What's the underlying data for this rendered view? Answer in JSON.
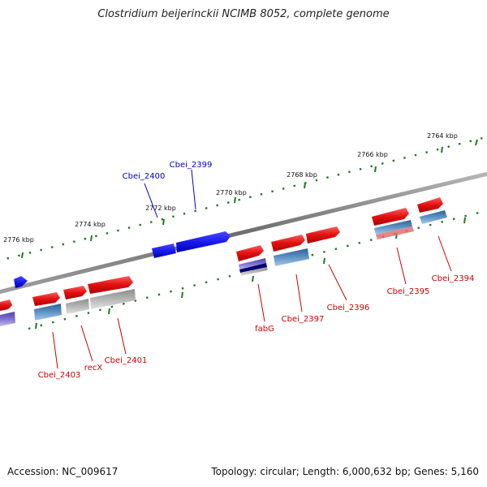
{
  "header": {
    "title": "Clostridium beijerinckii NCIMB 8052, complete genome"
  },
  "footer": {
    "accession": "Accession: NC_009617",
    "summary": "Topology: circular; Length: 6,000,632 bp; Genes: 5,160"
  },
  "colors": {
    "backbone": "#8a8a8a",
    "tick": "#1f7a1f",
    "forward_cds": "#e01010",
    "reverse_cds": "#1a1aee",
    "label_red": "#cc0000",
    "label_blue": "#0000cc",
    "hit_blue": "#4a7fb5",
    "hit_gray": "#a9a9a9",
    "hit_purple": "#7060c0",
    "hit_navy": "#000070",
    "hit_pink": "#e07070"
  },
  "scale": {
    "unit": "kbp",
    "labels": [
      "2764 kbp",
      "2766 kbp",
      "2768 kbp",
      "2770 kbp",
      "2772 kbp",
      "2774 kbp",
      "2776 kbp"
    ]
  },
  "genes": [
    {
      "name": "Cbei_2394",
      "strand": "forward"
    },
    {
      "name": "Cbei_2395",
      "strand": "forward"
    },
    {
      "name": "Cbei_2396",
      "strand": "forward"
    },
    {
      "name": "Cbei_2397",
      "strand": "forward"
    },
    {
      "name": "fabG",
      "strand": "forward"
    },
    {
      "name": "Cbei_2399",
      "strand": "reverse"
    },
    {
      "name": "Cbei_2400",
      "strand": "reverse"
    },
    {
      "name": "Cbei_2401",
      "strand": "forward"
    },
    {
      "name": "recX",
      "strand": "forward"
    },
    {
      "name": "Cbei_2403",
      "strand": "forward"
    }
  ]
}
